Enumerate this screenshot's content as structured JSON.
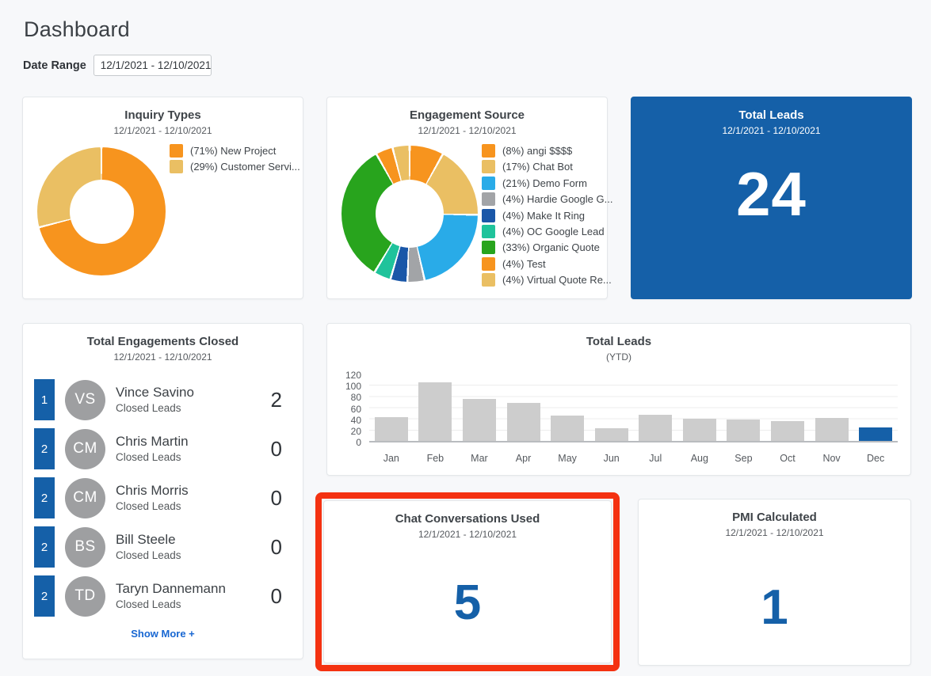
{
  "page": {
    "title": "Dashboard"
  },
  "date_range": {
    "label": "Date Range",
    "value": "12/1/2021 - 12/10/2021"
  },
  "colors": {
    "accent_blue": "#1560a8",
    "bar_gray": "#cdcdcd",
    "highlight_red": "#f43211",
    "link_blue": "#1867d2",
    "avatar_gray": "#9e9fa1"
  },
  "cards": {
    "inquiry_types": {
      "title": "Inquiry Types",
      "subtitle": "12/1/2021 - 12/10/2021"
    },
    "engagement_source": {
      "title": "Engagement Source",
      "subtitle": "12/1/2021 - 12/10/2021"
    },
    "total_leads": {
      "title": "Total Leads",
      "subtitle": "12/1/2021 - 12/10/2021",
      "value": "24"
    },
    "engagements_closed": {
      "title": "Total Engagements Closed",
      "subtitle": "12/1/2021 - 12/10/2021",
      "show_more": "Show More +",
      "rows": [
        {
          "rank": "1",
          "initials": "VS",
          "name": "Vince Savino",
          "label": "Closed Leads",
          "value": "2"
        },
        {
          "rank": "2",
          "initials": "CM",
          "name": "Chris Martin",
          "label": "Closed Leads",
          "value": "0"
        },
        {
          "rank": "2",
          "initials": "CM",
          "name": "Chris Morris",
          "label": "Closed Leads",
          "value": "0"
        },
        {
          "rank": "2",
          "initials": "BS",
          "name": "Bill Steele",
          "label": "Closed Leads",
          "value": "0"
        },
        {
          "rank": "2",
          "initials": "TD",
          "name": "Taryn Dannemann",
          "label": "Closed Leads",
          "value": "0"
        }
      ]
    },
    "total_leads_ytd": {
      "title": "Total Leads",
      "subtitle": "(YTD)"
    },
    "chat_conversations": {
      "title": "Chat Conversations Used",
      "subtitle": "12/1/2021 - 12/10/2021",
      "value": "5",
      "highlighted": true
    },
    "pmi_calculated": {
      "title": "PMI Calculated",
      "subtitle": "12/1/2021 - 12/10/2021",
      "value": "1"
    }
  },
  "chart_data": [
    {
      "id": "inquiry-types-donut",
      "type": "pie",
      "title": "Inquiry Types",
      "subtitle": "12/1/2021 - 12/10/2021",
      "legend_position": "right",
      "segments": [
        {
          "label": "(71%) New Project",
          "value": 71,
          "color": "#f7941e"
        },
        {
          "label": "(29%) Customer Servi...",
          "value": 29,
          "color": "#eabf63"
        }
      ]
    },
    {
      "id": "engagement-source-donut",
      "type": "pie",
      "title": "Engagement Source",
      "subtitle": "12/1/2021 - 12/10/2021",
      "legend_position": "right",
      "segments": [
        {
          "label": "(8%) angi $$$$",
          "value": 8,
          "color": "#f7941e"
        },
        {
          "label": "(17%) Chat Bot",
          "value": 17,
          "color": "#eabf63"
        },
        {
          "label": "(21%) Demo Form",
          "value": 21,
          "color": "#29abe8"
        },
        {
          "label": "(4%) Hardie Google G...",
          "value": 4,
          "color": "#a2a4a7"
        },
        {
          "label": "(4%) Make It Ring",
          "value": 4,
          "color": "#1a57a8"
        },
        {
          "label": "(4%) OC Google Lead",
          "value": 4,
          "color": "#1fc39b"
        },
        {
          "label": "(33%) Organic Quote",
          "value": 33,
          "color": "#28a41d"
        },
        {
          "label": "(4%) Test",
          "value": 4,
          "color": "#f7941e"
        },
        {
          "label": "(4%) Virtual Quote Re...",
          "value": 4,
          "color": "#eabf63"
        }
      ]
    },
    {
      "id": "total-leads-ytd-bar",
      "type": "bar",
      "title": "Total Leads",
      "subtitle": "(YTD)",
      "categories": [
        "Jan",
        "Feb",
        "Mar",
        "Apr",
        "May",
        "Jun",
        "Jul",
        "Aug",
        "Sep",
        "Oct",
        "Nov",
        "Dec"
      ],
      "values": [
        43,
        104,
        75,
        68,
        45,
        23,
        47,
        39,
        38,
        36,
        41,
        24
      ],
      "ylim": [
        0,
        120
      ],
      "yticks": [
        0,
        20,
        40,
        60,
        80,
        100,
        120
      ],
      "grid": true,
      "legend_position": "none",
      "bar_color": "#cdcdcd",
      "highlight_index": 11,
      "highlight_color": "#1560a8"
    }
  ]
}
